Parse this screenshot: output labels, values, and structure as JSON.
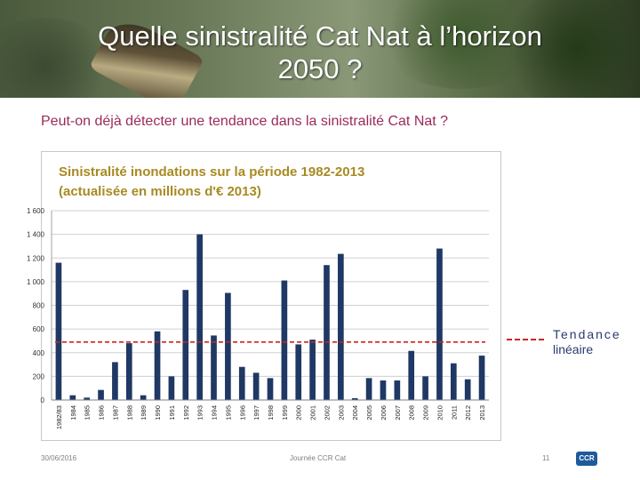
{
  "slide": {
    "title_line1": "Quelle sinistralité Cat Nat à l’horizon",
    "title_line2": "2050 ?",
    "subtitle": "Peut-on déjà détecter une tendance dans la sinistralité Cat Nat ?"
  },
  "footer": {
    "date": "30/06/2016",
    "event": "Journée CCR Cat",
    "page": "11",
    "logo": "CCR"
  },
  "legend": {
    "word1": "Tendance",
    "word2": "linéaire",
    "color": "#d02020"
  },
  "chart_data": {
    "type": "bar",
    "title_line1": "Sinistralité inondations sur la période 1982-2013",
    "title_line2": "(actualisée en millions d'€ 2013)",
    "categories": [
      "1982/83",
      "1984",
      "1985",
      "1986",
      "1987",
      "1988",
      "1989",
      "1990",
      "1991",
      "1992",
      "1993",
      "1994",
      "1995",
      "1996",
      "1997",
      "1998",
      "1999",
      "2000",
      "2001",
      "2002",
      "2003",
      "2004",
      "2005",
      "2006",
      "2007",
      "2008",
      "2009",
      "2010",
      "2011",
      "2012",
      "2013"
    ],
    "values": [
      1160,
      40,
      20,
      85,
      320,
      480,
      40,
      580,
      200,
      930,
      1400,
      545,
      905,
      280,
      230,
      185,
      1010,
      470,
      510,
      1140,
      1235,
      15,
      185,
      165,
      165,
      415,
      200,
      1280,
      310,
      175,
      375
    ],
    "trend_value": 490,
    "ylim": [
      0,
      1600
    ],
    "yticks": [
      0,
      200,
      400,
      600,
      800,
      1000,
      1200,
      1400,
      1600
    ],
    "ytick_labels": [
      "0",
      "200",
      "400",
      "600",
      "800",
      "1 000",
      "1 200",
      "1 400",
      "1 600"
    ],
    "bar_color": "#1f3864",
    "grid": true
  }
}
